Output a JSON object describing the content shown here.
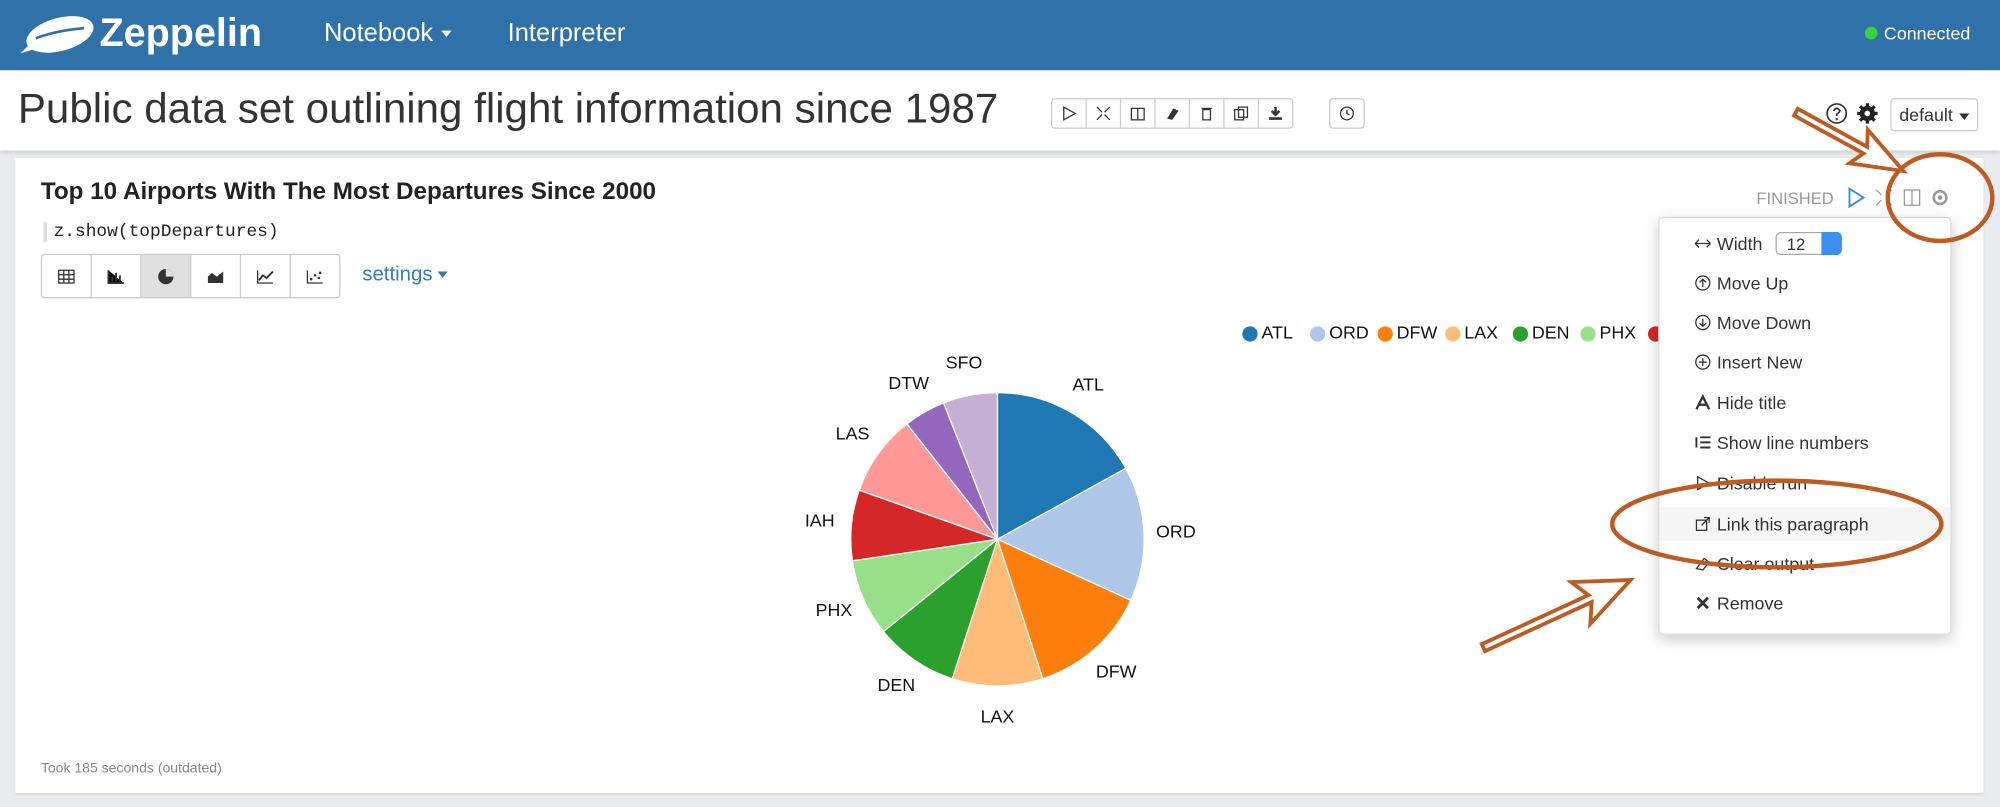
{
  "navbar": {
    "brand": "Zeppelin",
    "menu": [
      "Notebook",
      "Interpreter"
    ],
    "status": "Connected"
  },
  "notebook": {
    "title": "Public data set outlining flight information since 1987",
    "interpreter_binding": "default"
  },
  "paragraph": {
    "title": "Top 10 Airports With The Most Departures Since 2000",
    "code": "z.show(topDepartures)",
    "settings": "settings",
    "status": "FINISHED",
    "footer": "Took 185 seconds (outdated)"
  },
  "menu": {
    "width_label": "Width",
    "width_value": 12,
    "items": [
      "Move Up",
      "Move Down",
      "Insert New",
      "Hide title",
      "Show line numbers",
      "Disable run",
      "Link this paragraph",
      "Clear output",
      "Remove"
    ]
  },
  "chart_data": {
    "type": "pie",
    "categories": [
      "ATL",
      "ORD",
      "DFW",
      "LAX",
      "DEN",
      "PHX",
      "IAH",
      "LAS",
      "DTW",
      "SFO"
    ],
    "values": [
      17,
      14.9,
      13.2,
      10,
      9.2,
      8.5,
      7.8,
      9,
      4.6,
      6
    ],
    "colors": [
      "#1f77b4",
      "#aec7e8",
      "#ff7f0e",
      "#ffbb78",
      "#2ca02c",
      "#98df8a",
      "#d62728",
      "#ff9896",
      "#9467bd",
      "#c5b0d5"
    ],
    "legend": "top-right"
  }
}
